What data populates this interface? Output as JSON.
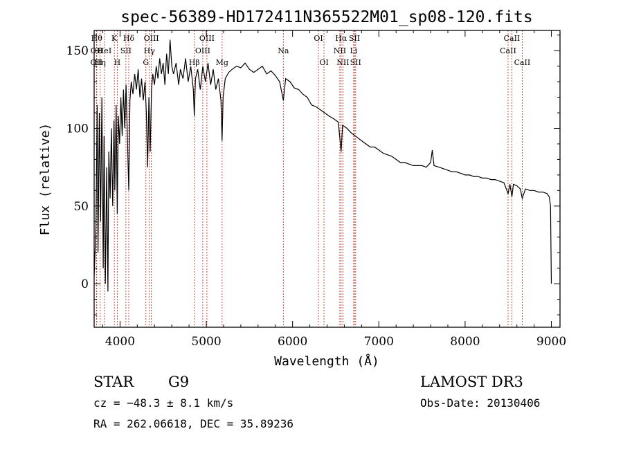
{
  "chart_data": {
    "type": "line",
    "title": "spec-56389-HD172411N365522M01_sp08-120.fits",
    "xlabel": "Wavelength (Å)",
    "ylabel": "Flux (relative)",
    "xlim": [
      3700,
      9100
    ],
    "ylim": [
      -28,
      163
    ],
    "xticks": [
      4000,
      5000,
      6000,
      7000,
      8000,
      9000
    ],
    "yticks": [
      0,
      50,
      100,
      150
    ],
    "series": [
      {
        "name": "flux",
        "points": [
          [
            3700,
            5
          ],
          [
            3720,
            35
          ],
          [
            3735,
            115
          ],
          [
            3745,
            20
          ],
          [
            3760,
            110
          ],
          [
            3775,
            40
          ],
          [
            3790,
            120
          ],
          [
            3805,
            10
          ],
          [
            3815,
            95
          ],
          [
            3830,
            0
          ],
          [
            3845,
            75
          ],
          [
            3860,
            -5
          ],
          [
            3870,
            85
          ],
          [
            3885,
            55
          ],
          [
            3900,
            100
          ],
          [
            3915,
            50
          ],
          [
            3930,
            105
          ],
          [
            3940,
            60
          ],
          [
            3955,
            115
          ],
          [
            3968,
            45
          ],
          [
            3980,
            108
          ],
          [
            3995,
            90
          ],
          [
            4010,
            120
          ],
          [
            4025,
            95
          ],
          [
            4040,
            125
          ],
          [
            4055,
            100
          ],
          [
            4070,
            128
          ],
          [
            4085,
            95
          ],
          [
            4101,
            60
          ],
          [
            4115,
            118
          ],
          [
            4130,
            130
          ],
          [
            4150,
            122
          ],
          [
            4170,
            135
          ],
          [
            4190,
            125
          ],
          [
            4210,
            138
          ],
          [
            4230,
            120
          ],
          [
            4250,
            132
          ],
          [
            4270,
            118
          ],
          [
            4290,
            130
          ],
          [
            4305,
            110
          ],
          [
            4320,
            75
          ],
          [
            4335,
            120
          ],
          [
            4350,
            85
          ],
          [
            4365,
            125
          ],
          [
            4380,
            135
          ],
          [
            4400,
            128
          ],
          [
            4420,
            140
          ],
          [
            4440,
            132
          ],
          [
            4460,
            145
          ],
          [
            4480,
            135
          ],
          [
            4500,
            142
          ],
          [
            4520,
            128
          ],
          [
            4540,
            148
          ],
          [
            4560,
            135
          ],
          [
            4580,
            157
          ],
          [
            4600,
            140
          ],
          [
            4620,
            135
          ],
          [
            4650,
            142
          ],
          [
            4680,
            128
          ],
          [
            4700,
            138
          ],
          [
            4730,
            132
          ],
          [
            4760,
            145
          ],
          [
            4790,
            130
          ],
          [
            4820,
            140
          ],
          [
            4850,
            125
          ],
          [
            4861,
            108
          ],
          [
            4875,
            132
          ],
          [
            4900,
            138
          ],
          [
            4930,
            125
          ],
          [
            4960,
            140
          ],
          [
            4990,
            130
          ],
          [
            5020,
            142
          ],
          [
            5050,
            128
          ],
          [
            5080,
            138
          ],
          [
            5110,
            125
          ],
          [
            5140,
            132
          ],
          [
            5170,
            118
          ],
          [
            5183,
            92
          ],
          [
            5195,
            120
          ],
          [
            5220,
            132
          ],
          [
            5260,
            136
          ],
          [
            5300,
            138
          ],
          [
            5350,
            140
          ],
          [
            5400,
            139
          ],
          [
            5450,
            142
          ],
          [
            5500,
            138
          ],
          [
            5550,
            136
          ],
          [
            5600,
            138
          ],
          [
            5650,
            140
          ],
          [
            5700,
            135
          ],
          [
            5750,
            137
          ],
          [
            5800,
            134
          ],
          [
            5850,
            130
          ],
          [
            5893,
            118
          ],
          [
            5920,
            132
          ],
          [
            5970,
            130
          ],
          [
            6020,
            126
          ],
          [
            6070,
            125
          ],
          [
            6120,
            122
          ],
          [
            6170,
            120
          ],
          [
            6220,
            115
          ],
          [
            6270,
            114
          ],
          [
            6320,
            112
          ],
          [
            6370,
            110
          ],
          [
            6420,
            108
          ],
          [
            6480,
            106
          ],
          [
            6530,
            104
          ],
          [
            6563,
            85
          ],
          [
            6580,
            102
          ],
          [
            6630,
            100
          ],
          [
            6680,
            97
          ],
          [
            6730,
            95
          ],
          [
            6800,
            92
          ],
          [
            6850,
            90
          ],
          [
            6900,
            88
          ],
          [
            6950,
            88
          ],
          [
            7000,
            86
          ],
          [
            7050,
            84
          ],
          [
            7100,
            83
          ],
          [
            7150,
            82
          ],
          [
            7200,
            80
          ],
          [
            7250,
            78
          ],
          [
            7300,
            78
          ],
          [
            7350,
            77
          ],
          [
            7400,
            76
          ],
          [
            7450,
            76
          ],
          [
            7500,
            76
          ],
          [
            7550,
            75
          ],
          [
            7600,
            78
          ],
          [
            7620,
            86
          ],
          [
            7640,
            76
          ],
          [
            7700,
            75
          ],
          [
            7750,
            74
          ],
          [
            7800,
            73
          ],
          [
            7850,
            72
          ],
          [
            7900,
            72
          ],
          [
            7950,
            71
          ],
          [
            8000,
            70
          ],
          [
            8050,
            70
          ],
          [
            8100,
            69
          ],
          [
            8150,
            69
          ],
          [
            8200,
            68
          ],
          [
            8250,
            68
          ],
          [
            8300,
            67
          ],
          [
            8350,
            67
          ],
          [
            8400,
            66
          ],
          [
            8450,
            65
          ],
          [
            8498,
            58
          ],
          [
            8520,
            64
          ],
          [
            8542,
            56
          ],
          [
            8560,
            64
          ],
          [
            8600,
            63
          ],
          [
            8640,
            61
          ],
          [
            8662,
            55
          ],
          [
            8700,
            61
          ],
          [
            8750,
            60
          ],
          [
            8800,
            60
          ],
          [
            8850,
            59
          ],
          [
            8900,
            59
          ],
          [
            8950,
            58
          ],
          [
            8975,
            56
          ],
          [
            8990,
            50
          ],
          [
            9000,
            0
          ]
        ]
      }
    ],
    "annotations": [
      {
        "wave": 3730,
        "label": "Hθ",
        "row": 0
      },
      {
        "wave": 3729,
        "label": "OII",
        "row": 1
      },
      {
        "wave": 3727,
        "label": "OII",
        "row": 2
      },
      {
        "wave": 3770,
        "label": "Hη",
        "row": 2
      },
      {
        "wave": 3820,
        "label": "HeI",
        "row": 1
      },
      {
        "wave": 3934,
        "label": "K",
        "row": 0
      },
      {
        "wave": 3968,
        "label": "H",
        "row": 2
      },
      {
        "wave": 4068,
        "label": "SII",
        "row": 1
      },
      {
        "wave": 4101,
        "label": "Hδ",
        "row": 0
      },
      {
        "wave": 4300,
        "label": "G",
        "row": 2
      },
      {
        "wave": 4340,
        "label": "Hγ",
        "row": 1
      },
      {
        "wave": 4363,
        "label": "OIII",
        "row": 0
      },
      {
        "wave": 4861,
        "label": "Hβ",
        "row": 2
      },
      {
        "wave": 4959,
        "label": "OIII",
        "row": 1
      },
      {
        "wave": 5007,
        "label": "OIII",
        "row": 0
      },
      {
        "wave": 5183,
        "label": "Mg",
        "row": 2
      },
      {
        "wave": 5893,
        "label": "Na",
        "row": 1
      },
      {
        "wave": 6300,
        "label": "OI",
        "row": 0
      },
      {
        "wave": 6364,
        "label": "OI",
        "row": 2
      },
      {
        "wave": 6548,
        "label": "NII",
        "row": 1
      },
      {
        "wave": 6563,
        "label": "Hα",
        "row": 0
      },
      {
        "wave": 6584,
        "label": "NII",
        "row": 2
      },
      {
        "wave": 6708,
        "label": "Li",
        "row": 1
      },
      {
        "wave": 6717,
        "label": "SII",
        "row": 0
      },
      {
        "wave": 6731,
        "label": "SII",
        "row": 2
      },
      {
        "wave": 8498,
        "label": "CaII",
        "row": 1
      },
      {
        "wave": 8542,
        "label": "CaII",
        "row": 0
      },
      {
        "wave": 8662,
        "label": "CaII",
        "row": 2
      }
    ]
  },
  "info": {
    "class": "STAR",
    "subclass": "G9",
    "survey": "LAMOST DR3",
    "cz": "cz = −48.3 ± 8.1 km/s",
    "obs_date": "Obs-Date: 20130406",
    "coords": "RA = 262.06618, DEC =  35.89236"
  },
  "colors": {
    "spectrum": "#000000",
    "line_marker": "#c0392b",
    "axis": "#000000"
  }
}
